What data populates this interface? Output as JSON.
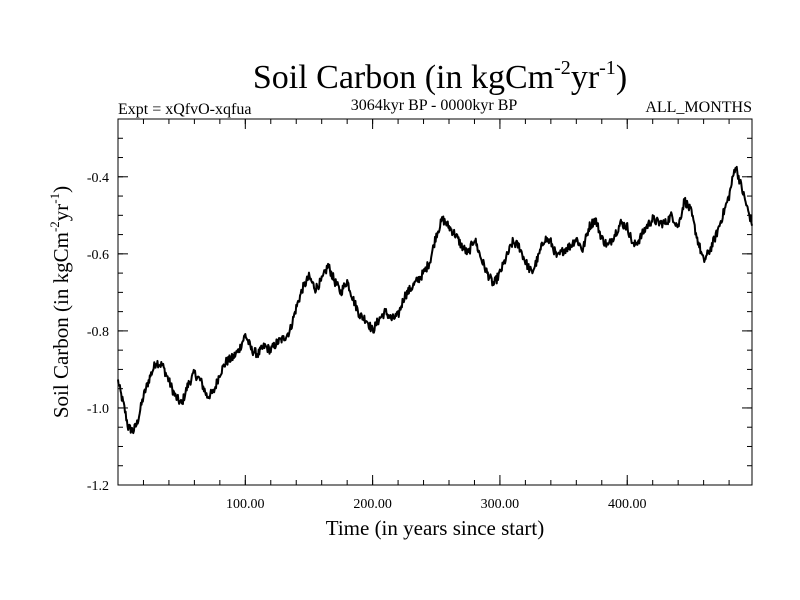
{
  "chart_data": {
    "type": "line",
    "title": {
      "base": "Soil Carbon (in kgCm",
      "sup1": "-2",
      "mid": "yr",
      "sup2": "-1",
      "end": ")"
    },
    "subtitle_left": "Expt = xQfvO-xqfua",
    "subtitle_center": "3064kyr BP - 0000kyr BP",
    "subtitle_right": "ALL_MONTHS",
    "xlabel": "Time (in years since start)",
    "ylabel": {
      "base": "Soil Carbon (in kgCm",
      "sup1": "-2",
      "mid": "yr",
      "sup2": "-1",
      "end": ")"
    },
    "xlim": [
      0,
      498
    ],
    "ylim": [
      -1.2,
      -0.25
    ],
    "x_ticks": [
      100,
      200,
      300,
      400
    ],
    "x_tick_labels": [
      "100.00",
      "200.00",
      "300.00",
      "400.00"
    ],
    "y_ticks": [
      -1.2,
      -1.0,
      -0.8,
      -0.6,
      -0.4
    ],
    "y_tick_labels": [
      "-1.2",
      "-1.0",
      "-0.8",
      "-0.6",
      "-0.4"
    ],
    "x_minor_step": 20,
    "y_minor_step": 0.05,
    "noise_amplitude": 0.012,
    "series": [
      {
        "name": "Soil Carbon",
        "color": "#000000",
        "x": [
          0,
          2,
          5,
          8,
          12,
          15,
          20,
          25,
          30,
          35,
          40,
          45,
          50,
          55,
          60,
          65,
          70,
          75,
          80,
          85,
          90,
          95,
          100,
          105,
          110,
          115,
          120,
          125,
          130,
          135,
          140,
          145,
          150,
          155,
          160,
          165,
          170,
          175,
          180,
          185,
          190,
          195,
          200,
          205,
          210,
          215,
          220,
          225,
          230,
          235,
          240,
          245,
          250,
          255,
          260,
          265,
          270,
          275,
          280,
          285,
          290,
          295,
          300,
          305,
          310,
          315,
          320,
          325,
          330,
          335,
          340,
          345,
          350,
          355,
          360,
          365,
          370,
          375,
          380,
          385,
          390,
          395,
          400,
          405,
          410,
          415,
          420,
          425,
          430,
          435,
          440,
          445,
          450,
          455,
          460,
          465,
          470,
          475,
          480,
          485,
          490,
          495,
          498
        ],
        "values": [
          -0.93,
          -0.96,
          -1.0,
          -1.05,
          -1.06,
          -1.04,
          -0.97,
          -0.92,
          -0.88,
          -0.89,
          -0.93,
          -0.97,
          -0.99,
          -0.94,
          -0.91,
          -0.93,
          -0.97,
          -0.96,
          -0.91,
          -0.88,
          -0.87,
          -0.85,
          -0.81,
          -0.85,
          -0.86,
          -0.84,
          -0.85,
          -0.83,
          -0.82,
          -0.8,
          -0.74,
          -0.69,
          -0.66,
          -0.69,
          -0.67,
          -0.63,
          -0.67,
          -0.7,
          -0.67,
          -0.72,
          -0.76,
          -0.77,
          -0.8,
          -0.77,
          -0.75,
          -0.77,
          -0.76,
          -0.71,
          -0.69,
          -0.67,
          -0.65,
          -0.62,
          -0.55,
          -0.51,
          -0.53,
          -0.55,
          -0.58,
          -0.6,
          -0.56,
          -0.61,
          -0.65,
          -0.68,
          -0.65,
          -0.61,
          -0.57,
          -0.58,
          -0.62,
          -0.65,
          -0.61,
          -0.56,
          -0.57,
          -0.61,
          -0.59,
          -0.58,
          -0.56,
          -0.59,
          -0.53,
          -0.51,
          -0.56,
          -0.58,
          -0.55,
          -0.52,
          -0.53,
          -0.58,
          -0.56,
          -0.53,
          -0.51,
          -0.52,
          -0.52,
          -0.5,
          -0.53,
          -0.46,
          -0.49,
          -0.56,
          -0.62,
          -0.59,
          -0.55,
          -0.5,
          -0.45,
          -0.37,
          -0.43,
          -0.49,
          -0.52
        ]
      }
    ]
  }
}
